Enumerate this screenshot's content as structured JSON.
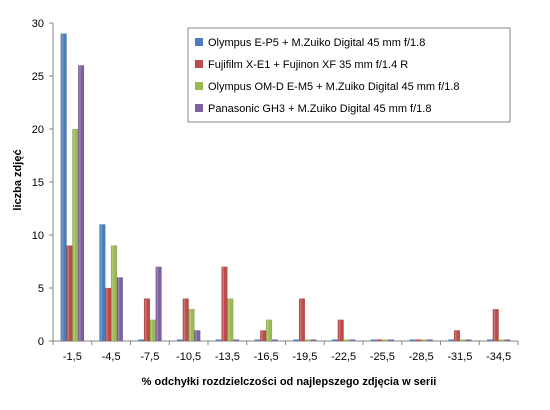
{
  "chart_data": {
    "type": "bar",
    "title": "",
    "xlabel": "% odchyłki rozdzielczości od najlepszego zdjęcia w serii",
    "ylabel": "liczba zdjęć",
    "ylim": [
      0,
      30
    ],
    "yticks": [
      0,
      5,
      10,
      15,
      20,
      25,
      30
    ],
    "grid": false,
    "legend_position": "top-right",
    "categories": [
      "-1,5",
      "-4,5",
      "-7,5",
      "-10,5",
      "-13,5",
      "-16,5",
      "-19,5",
      "-22,5",
      "-25,5",
      "-28,5",
      "-31,5",
      "-34,5"
    ],
    "series": [
      {
        "name": "Olympus E-P5 + M.Zuiko Digital 45 mm f/1.8",
        "color": "#4a7ebb",
        "values": [
          29,
          11,
          0,
          0,
          0,
          0,
          0,
          0,
          0,
          0,
          0,
          0
        ]
      },
      {
        "name": "Fujifilm X-E1 + Fujinon XF 35 mm f/1.4 R",
        "color": "#be4b48",
        "values": [
          9,
          5,
          4,
          4,
          7,
          1,
          4,
          2,
          0,
          0,
          1,
          3
        ]
      },
      {
        "name": "Olympus OM-D E-M5 + M.Zuiko Digital 45 mm f/1.8",
        "color": "#98b954",
        "values": [
          20,
          9,
          2,
          3,
          4,
          2,
          0,
          0,
          0,
          0,
          0,
          0
        ]
      },
      {
        "name": "Panasonic GH3 + M.Zuiko Digital 45 mm f/1.8",
        "color": "#7d60a0",
        "values": [
          26,
          6,
          7,
          1,
          0,
          0,
          0,
          0,
          0,
          0,
          0,
          0
        ]
      }
    ]
  }
}
